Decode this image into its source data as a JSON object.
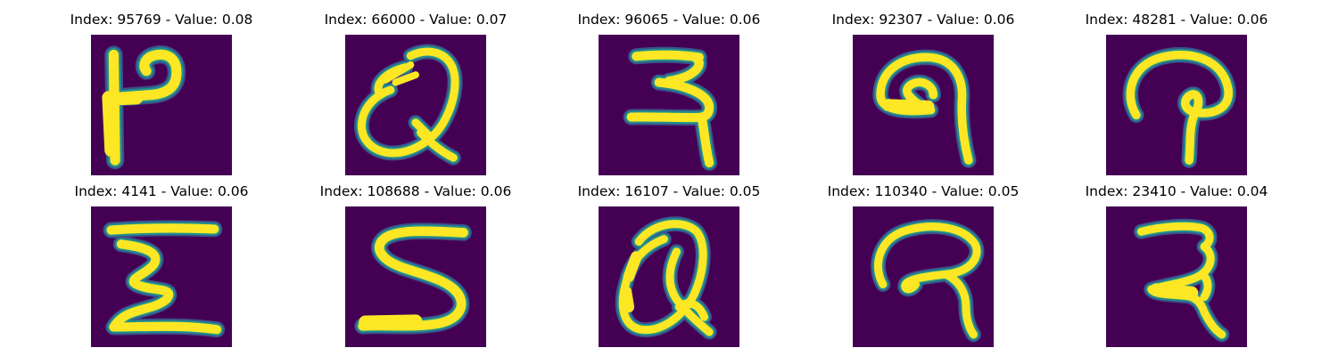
{
  "palette": {
    "background": "#440154",
    "low": "#3b528b",
    "mid": "#21918c",
    "high": "#5ec962",
    "peak": "#fde725"
  },
  "panels": [
    {
      "title": "Index: 95769 - Value: 0.08",
      "index": 95769,
      "value": 0.08,
      "glyph": "h-letter-icon"
    },
    {
      "title": "Index: 66000 - Value: 0.07",
      "index": 66000,
      "value": 0.07,
      "glyph": "looped-q-icon"
    },
    {
      "title": "Index: 96065 - Value: 0.06",
      "index": 96065,
      "value": 0.06,
      "glyph": "hook-3-icon"
    },
    {
      "title": "Index: 92307 - Value: 0.06",
      "index": 92307,
      "value": 0.06,
      "glyph": "curl-9-icon"
    },
    {
      "title": "Index: 48281 - Value: 0.06",
      "index": 48281,
      "value": 0.06,
      "glyph": "arch-p-icon"
    },
    {
      "title": "Index: 4141 - Value: 0.06",
      "index": 4141,
      "value": 0.06,
      "glyph": "zigzag-z-icon"
    },
    {
      "title": "Index: 108688 - Value: 0.06",
      "index": 108688,
      "value": 0.06,
      "glyph": "letter-s-icon"
    },
    {
      "title": "Index: 16107 - Value: 0.05",
      "index": 16107,
      "value": 0.05,
      "glyph": "tilted-q-icon"
    },
    {
      "title": "Index: 110340 - Value: 0.05",
      "index": 110340,
      "value": 0.05,
      "glyph": "loop-r-icon"
    },
    {
      "title": "Index: 23410 - Value: 0.04",
      "index": 23410,
      "value": 0.04,
      "glyph": "hook-2-icon"
    }
  ]
}
